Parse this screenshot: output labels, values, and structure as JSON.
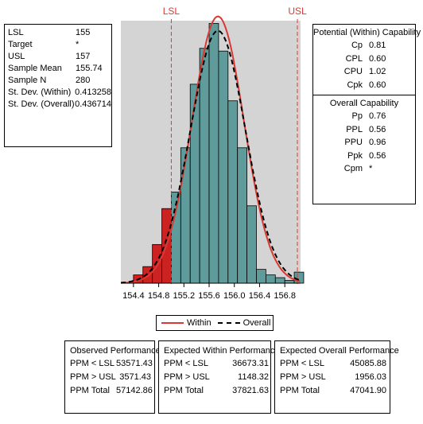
{
  "process": {
    "rows": [
      {
        "label": "LSL",
        "value": "155"
      },
      {
        "label": "Target",
        "value": "*"
      },
      {
        "label": "USL",
        "value": "157"
      },
      {
        "label": "Sample Mean",
        "value": "155.74"
      },
      {
        "label": "Sample N",
        "value": "280"
      },
      {
        "label": "St. Dev. (Within)",
        "value": "0.413258"
      },
      {
        "label": "St. Dev. (Overall)",
        "value": "0.436714"
      }
    ]
  },
  "within_capability": {
    "title": "Potential (Within) Capability",
    "rows": [
      {
        "label": "Cp",
        "value": "0.81"
      },
      {
        "label": "CPL",
        "value": "0.60"
      },
      {
        "label": "CPU",
        "value": "1.02"
      },
      {
        "label": "Cpk",
        "value": "0.60"
      }
    ]
  },
  "overall_capability": {
    "title": "Overall Capability",
    "rows": [
      {
        "label": "Pp",
        "value": "0.76"
      },
      {
        "label": "PPL",
        "value": "0.56"
      },
      {
        "label": "PPU",
        "value": "0.96"
      },
      {
        "label": "Ppk",
        "value": "0.56"
      },
      {
        "label": "Cpm",
        "value": "*"
      }
    ]
  },
  "legend": {
    "within": "Within",
    "overall": "Overall",
    "within_color": "#d83a32",
    "overall_color": "#000000"
  },
  "observed": {
    "title": "Observed Performance",
    "rows": [
      {
        "label": "PPM < LSL",
        "value": "53571.43"
      },
      {
        "label": "PPM > USL",
        "value": "3571.43"
      },
      {
        "label": "PPM Total",
        "value": "57142.86"
      }
    ]
  },
  "expected_within": {
    "title": "Expected Within Performance",
    "rows": [
      {
        "label": "PPM < LSL",
        "value": "36673.31"
      },
      {
        "label": "PPM > USL",
        "value": "1148.32"
      },
      {
        "label": "PPM Total",
        "value": "37821.63"
      }
    ]
  },
  "expected_overall": {
    "title": "Expected Overall Performance",
    "rows": [
      {
        "label": "PPM < LSL",
        "value": "45085.88"
      },
      {
        "label": "PPM > USL",
        "value": "1956.03"
      },
      {
        "label": "PPM Total",
        "value": "47041.90"
      }
    ]
  },
  "chart_data": {
    "type": "bar",
    "subtype": "histogram",
    "xlim": [
      154.2,
      157.05
    ],
    "ylim": [
      0,
      0.95
    ],
    "x_ticks": [
      "154.4",
      "154.8",
      "155.2",
      "155.6",
      "156.0",
      "156.4",
      "156.8"
    ],
    "x_tick_values": [
      154.4,
      154.8,
      155.2,
      155.6,
      156.0,
      156.4,
      156.8
    ],
    "bin_width": 0.15,
    "bins": [
      {
        "start": 154.4,
        "end": 154.55,
        "density": 0.03
      },
      {
        "start": 154.55,
        "end": 154.7,
        "density": 0.06
      },
      {
        "start": 154.7,
        "end": 154.85,
        "density": 0.14
      },
      {
        "start": 154.85,
        "end": 155.0,
        "density": 0.27
      },
      {
        "start": 155.0,
        "end": 155.15,
        "density": 0.33
      },
      {
        "start": 155.15,
        "end": 155.3,
        "density": 0.49
      },
      {
        "start": 155.3,
        "end": 155.45,
        "density": 0.72
      },
      {
        "start": 155.45,
        "end": 155.6,
        "density": 0.85
      },
      {
        "start": 155.6,
        "end": 155.75,
        "density": 0.94
      },
      {
        "start": 155.75,
        "end": 155.9,
        "density": 0.84
      },
      {
        "start": 155.9,
        "end": 156.05,
        "density": 0.66
      },
      {
        "start": 156.05,
        "end": 156.2,
        "density": 0.49
      },
      {
        "start": 156.2,
        "end": 156.35,
        "density": 0.28
      },
      {
        "start": 156.35,
        "end": 156.5,
        "density": 0.05
      },
      {
        "start": 156.5,
        "end": 156.65,
        "density": 0.03
      },
      {
        "start": 156.65,
        "end": 156.8,
        "density": 0.02
      },
      {
        "start": 156.8,
        "end": 156.95,
        "density": 0.01
      },
      {
        "start": 156.95,
        "end": 157.1,
        "density": 0.04
      }
    ],
    "out_of_spec_color": "#cc2222",
    "in_spec_color": "#5f9b9b",
    "plot_bg": "#d4d4d4",
    "spec_lines": [
      {
        "label": "LSL",
        "value": 155.0
      },
      {
        "label": "USL",
        "value": 157.0
      }
    ],
    "spec_line_color": "#d83a32",
    "curves": [
      {
        "name": "Within",
        "mean": 155.74,
        "sd": 0.413258,
        "color": "#d83a32",
        "dash": "solid"
      },
      {
        "name": "Overall",
        "mean": 155.74,
        "sd": 0.436714,
        "color": "#000000",
        "dash": "dashed"
      }
    ]
  }
}
